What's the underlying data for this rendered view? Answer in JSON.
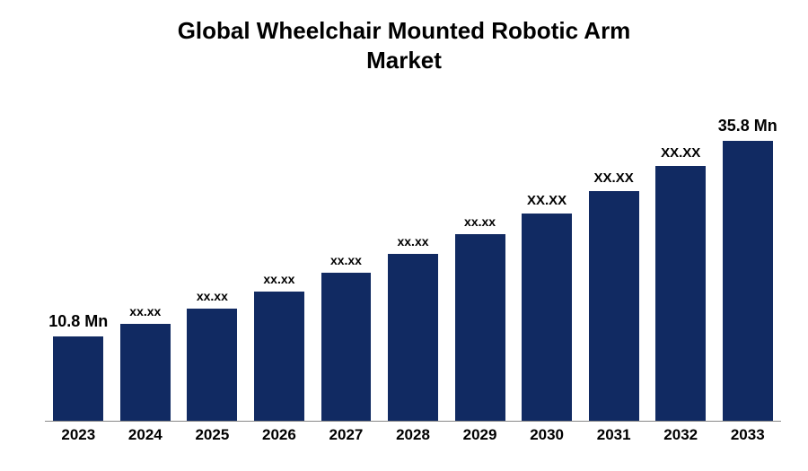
{
  "chart": {
    "type": "bar",
    "title_line1": "Global Wheelchair Mounted Robotic Arm",
    "title_line2": "Market",
    "title_fontsize": 26,
    "title_color": "#000000",
    "background_color": "#ffffff",
    "bar_color": "#112a62",
    "axis_line_color": "#888888",
    "categories": [
      "2023",
      "2024",
      "2025",
      "2026",
      "2027",
      "2028",
      "2029",
      "2030",
      "2031",
      "2032",
      "2033"
    ],
    "values": [
      10.8,
      12.4,
      14.3,
      16.5,
      18.9,
      21.3,
      23.8,
      26.5,
      29.4,
      32.5,
      35.8
    ],
    "bar_labels": [
      "10.8 Mn",
      "xx.xx",
      "xx.xx",
      "xx.xx",
      "xx.xx",
      "xx.xx",
      "xx.xx",
      "XX.XX",
      "XX.XX",
      "XX.XX",
      "35.8 Mn"
    ],
    "label_fontsizes": [
      18,
      14,
      14,
      14,
      14,
      14,
      14,
      15,
      15,
      15,
      18
    ],
    "x_label_fontsize": 17,
    "bar_width": 0.75,
    "ylim_max": 40
  }
}
